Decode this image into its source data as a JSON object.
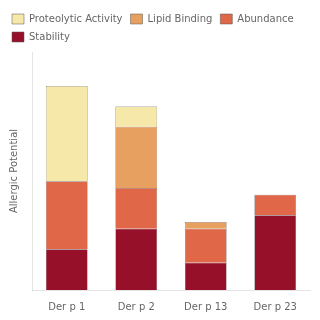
{
  "chart_data": {
    "type": "bar",
    "stacked": true,
    "categories": [
      "Der p 1",
      "Der p 2",
      "Der p 13",
      "Der p 23"
    ],
    "series": [
      {
        "name": "Stability",
        "color": "#96102a",
        "values": [
          0.12,
          0.18,
          0.08,
          0.22
        ]
      },
      {
        "name": "Abundance",
        "color": "#e06848",
        "values": [
          0.2,
          0.12,
          0.1,
          0.06
        ]
      },
      {
        "name": "Lipid Binding",
        "color": "#e8a060",
        "values": [
          0.0,
          0.18,
          0.02,
          0.0
        ]
      },
      {
        "name": "Proteolytic Activity",
        "color": "#f5e8a8",
        "values": [
          0.28,
          0.06,
          0.0,
          0.0
        ]
      }
    ],
    "ylabel": "Allergic Potential",
    "ylim": [
      0,
      0.7
    ],
    "grid": false,
    "legend": "upper left",
    "tick_labels": "x"
  }
}
